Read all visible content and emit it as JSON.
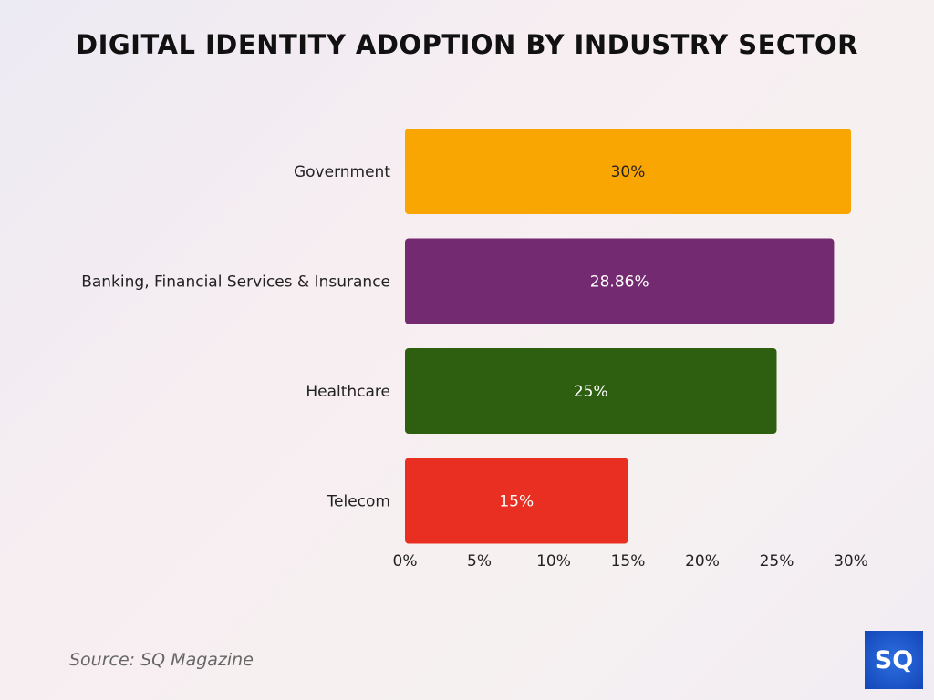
{
  "chart_data": {
    "type": "bar",
    "orientation": "horizontal",
    "title": "DIGITAL IDENTITY ADOPTION BY INDUSTRY SECTOR",
    "categories": [
      "Government",
      "Banking, Financial Services & Insurance",
      "Healthcare",
      "Telecom"
    ],
    "values": [
      30,
      28.86,
      25,
      15
    ],
    "data_labels": [
      "30%",
      "28.86%",
      "25%",
      "15%"
    ],
    "colors": [
      "#f9a602",
      "#732a70",
      "#2e5f10",
      "#e82f22"
    ],
    "xticks": [
      "0%",
      "5%",
      "10%",
      "15%",
      "20%",
      "25%",
      "30%"
    ],
    "xlim": [
      0,
      30
    ],
    "grid": false,
    "xlabel": "",
    "ylabel": ""
  },
  "source": "Source: SQ Magazine",
  "logo": "SQ"
}
